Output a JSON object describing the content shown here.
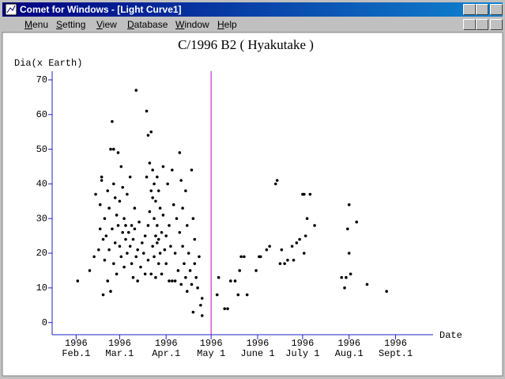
{
  "window": {
    "title": "Comet for Windows - [Light Curve1]"
  },
  "menu": [
    "Menu",
    "Setting",
    "View",
    "Database",
    "Window",
    "Help"
  ],
  "chart_data": {
    "type": "scatter",
    "title": "C/1996 B2 ( Hyakutake )",
    "y_label": "Dia(x Earth)",
    "x_label": "Date",
    "ylim": [
      -3.5,
      72.5
    ],
    "yticks": [
      0,
      10,
      20,
      30,
      40,
      50,
      60,
      70
    ],
    "xlim": [
      "1996-01-16",
      "1996-09-26"
    ],
    "xticks": [
      {
        "value": "1996-02-01",
        "label": [
          "1996",
          "Feb.1"
        ]
      },
      {
        "value": "1996-03-01",
        "label": [
          "1996",
          "Mar.1"
        ]
      },
      {
        "value": "1996-04-01",
        "label": [
          "1996",
          "Apr.1"
        ]
      },
      {
        "value": "1996-05-01",
        "label": [
          "1996",
          "May 1"
        ]
      },
      {
        "value": "1996-06-01",
        "label": [
          "1996",
          "June 1"
        ]
      },
      {
        "value": "1996-07-01",
        "label": [
          "1996",
          "July 1"
        ]
      },
      {
        "value": "1996-08-01",
        "label": [
          "1996",
          "Aug.1"
        ]
      },
      {
        "value": "1996-09-01",
        "label": [
          "1996",
          "Sept.1"
        ]
      }
    ],
    "vline": "1996-05-01",
    "vline_color": "#c000c0",
    "axis_color": "#2020c0",
    "color": "#000000",
    "x": [
      "1996-02-02",
      "1996-02-10",
      "1996-02-13",
      "1996-02-14",
      "1996-02-16",
      "1996-02-17",
      "1996-02-17",
      "1996-02-18",
      "1996-02-18",
      "1996-02-19",
      "1996-02-19",
      "1996-02-20",
      "1996-02-20",
      "1996-02-21",
      "1996-02-22",
      "1996-02-22",
      "1996-02-23",
      "1996-02-23",
      "1996-02-24",
      "1996-02-24",
      "1996-02-25",
      "1996-02-25",
      "1996-02-26",
      "1996-02-26",
      "1996-02-26",
      "1996-02-27",
      "1996-02-27",
      "1996-02-28",
      "1996-02-28",
      "1996-02-29",
      "1996-02-29",
      "1996-03-01",
      "1996-03-01",
      "1996-03-02",
      "1996-03-02",
      "1996-03-03",
      "1996-03-03",
      "1996-03-04",
      "1996-03-04",
      "1996-03-05",
      "1996-03-05",
      "1996-03-06",
      "1996-03-06",
      "1996-03-07",
      "1996-03-08",
      "1996-03-08",
      "1996-03-09",
      "1996-03-09",
      "1996-03-10",
      "1996-03-10",
      "1996-03-11",
      "1996-03-11",
      "1996-03-12",
      "1996-03-12",
      "1996-03-13",
      "1996-03-13",
      "1996-03-14",
      "1996-03-15",
      "1996-03-16",
      "1996-03-17",
      "1996-03-18",
      "1996-03-18",
      "1996-03-19",
      "1996-03-19",
      "1996-03-20",
      "1996-03-20",
      "1996-03-20",
      "1996-03-21",
      "1996-03-21",
      "1996-03-22",
      "1996-03-22",
      "1996-03-22",
      "1996-03-23",
      "1996-03-23",
      "1996-03-23",
      "1996-03-24",
      "1996-03-24",
      "1996-03-24",
      "1996-03-25",
      "1996-03-25",
      "1996-03-25",
      "1996-03-26",
      "1996-03-26",
      "1996-03-26",
      "1996-03-27",
      "1996-03-27",
      "1996-03-27",
      "1996-03-28",
      "1996-03-28",
      "1996-03-29",
      "1996-03-29",
      "1996-03-30",
      "1996-03-30",
      "1996-03-31",
      "1996-04-01",
      "1996-04-01",
      "1996-04-02",
      "1996-04-03",
      "1996-04-03",
      "1996-04-04",
      "1996-04-05",
      "1996-04-05",
      "1996-04-06",
      "1996-04-07",
      "1996-04-07",
      "1996-04-08",
      "1996-04-09",
      "1996-04-10",
      "1996-04-10",
      "1996-04-11",
      "1996-04-11",
      "1996-04-12",
      "1996-04-12",
      "1996-04-13",
      "1996-04-14",
      "1996-04-14",
      "1996-04-15",
      "1996-04-15",
      "1996-04-16",
      "1996-04-17",
      "1996-04-18",
      "1996-04-18",
      "1996-04-19",
      "1996-04-19",
      "1996-04-20",
      "1996-04-20",
      "1996-04-21",
      "1996-04-22",
      "1996-04-23",
      "1996-04-24",
      "1996-04-25",
      "1996-04-25",
      "1996-05-05",
      "1996-05-06",
      "1996-05-10",
      "1996-05-12",
      "1996-05-14",
      "1996-05-17",
      "1996-05-19",
      "1996-05-20",
      "1996-05-21",
      "1996-05-23",
      "1996-05-25",
      "1996-05-31",
      "1996-06-02",
      "1996-06-03",
      "1996-06-07",
      "1996-06-09",
      "1996-06-13",
      "1996-06-14",
      "1996-06-16",
      "1996-06-17",
      "1996-06-19",
      "1996-06-21",
      "1996-06-24",
      "1996-06-25",
      "1996-06-27",
      "1996-06-29",
      "1996-07-01",
      "1996-07-02",
      "1996-07-02",
      "1996-07-03",
      "1996-07-04",
      "1996-07-06",
      "1996-07-09",
      "1996-07-27",
      "1996-07-29",
      "1996-07-30",
      "1996-07-31",
      "1996-08-01",
      "1996-08-01",
      "1996-08-02",
      "1996-08-06",
      "1996-08-13",
      "1996-08-26"
    ],
    "values": [
      12,
      15,
      19,
      37,
      21,
      27,
      34,
      42,
      41,
      24,
      8,
      30,
      18,
      25,
      38,
      12,
      21,
      33,
      50,
      9,
      58,
      27,
      40,
      50,
      17,
      36,
      23,
      31,
      14,
      49,
      28,
      22,
      35,
      45,
      19,
      39,
      26,
      30,
      16,
      24,
      28,
      20,
      37,
      26,
      42,
      22,
      17,
      28,
      24,
      13,
      33,
      27,
      67,
      19,
      21,
      12,
      29,
      16,
      23,
      20,
      25,
      14,
      61,
      42,
      54,
      28,
      18,
      46,
      32,
      55,
      38,
      14,
      44,
      36,
      22,
      40,
      30,
      19,
      35,
      25,
      13,
      42,
      28,
      23,
      38,
      24,
      17,
      33,
      20,
      26,
      14,
      45,
      31,
      21,
      25,
      17,
      40,
      28,
      12,
      22,
      44,
      12,
      34,
      20,
      12,
      30,
      15,
      49,
      26,
      41,
      11,
      33,
      22,
      17,
      38,
      13,
      28,
      9,
      20,
      15,
      44,
      11,
      30,
      3,
      24,
      17,
      13,
      10,
      19,
      5,
      7,
      2,
      8,
      13,
      4,
      4,
      12,
      12,
      8,
      15,
      19,
      19,
      8,
      15,
      19,
      19,
      21,
      22,
      40,
      41,
      17,
      21,
      17,
      18,
      22,
      18,
      23,
      24,
      37,
      20,
      37,
      25,
      30,
      37,
      28,
      13,
      10,
      13,
      27,
      34,
      20,
      14,
      29,
      11,
      9
    ]
  }
}
